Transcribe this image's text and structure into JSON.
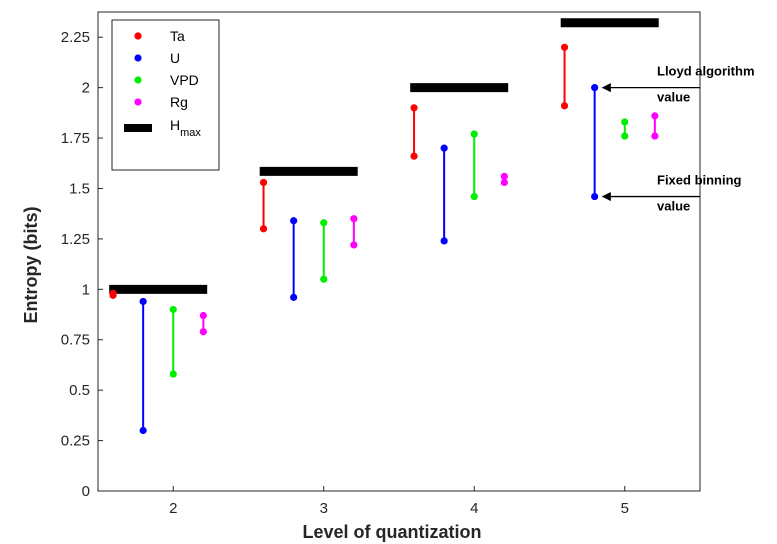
{
  "chart_data": {
    "type": "scatter",
    "title": "",
    "xlabel": "Level of quantization",
    "ylabel": "Entropy (bits)",
    "xlim": [
      1.5,
      5.5
    ],
    "ylim": [
      0,
      2.375
    ],
    "x_ticks": [
      2,
      3,
      4,
      5
    ],
    "x_tick_labels": [
      "2",
      "3",
      "4",
      "5"
    ],
    "y_ticks": [
      0,
      0.25,
      0.5,
      0.75,
      1,
      1.25,
      1.5,
      1.75,
      2,
      2.25
    ],
    "y_tick_labels": [
      "0",
      "0.25",
      "0.5",
      "0.75",
      "1",
      "1.25",
      "1.5",
      "1.75",
      "2",
      "2.25"
    ],
    "grid": true,
    "legend_position": "top-left",
    "series": [
      {
        "name": "Ta",
        "color": "#ff0000",
        "offset": -0.2,
        "points": [
          {
            "level": 2,
            "lloyd": 0.98,
            "fixed": 0.97
          },
          {
            "level": 3,
            "lloyd": 1.53,
            "fixed": 1.3
          },
          {
            "level": 4,
            "lloyd": 1.9,
            "fixed": 1.66
          },
          {
            "level": 5,
            "lloyd": 2.2,
            "fixed": 1.91
          }
        ]
      },
      {
        "name": "U",
        "color": "#0000ff",
        "offset": 0,
        "points": [
          {
            "level": 2,
            "lloyd": 0.94,
            "fixed": 0.3
          },
          {
            "level": 3,
            "lloyd": 1.34,
            "fixed": 0.96
          },
          {
            "level": 4,
            "lloyd": 1.7,
            "fixed": 1.24
          },
          {
            "level": 5,
            "lloyd": 2.0,
            "fixed": 1.46
          }
        ]
      },
      {
        "name": "VPD",
        "color": "#00ee00",
        "offset": 0.2,
        "points": [
          {
            "level": 2,
            "lloyd": 0.9,
            "fixed": 0.58
          },
          {
            "level": 3,
            "lloyd": 1.33,
            "fixed": 1.05
          },
          {
            "level": 4,
            "lloyd": 1.77,
            "fixed": 1.46
          },
          {
            "level": 5,
            "lloyd": 1.83,
            "fixed": 1.76
          }
        ]
      },
      {
        "name": "Rg",
        "color": "#ff00ff",
        "offset": 0.4,
        "points": [
          {
            "level": 2,
            "lloyd": 0.87,
            "fixed": 0.79
          },
          {
            "level": 3,
            "lloyd": 1.35,
            "fixed": 1.22
          },
          {
            "level": 4,
            "lloyd": 1.56,
            "fixed": 1.53
          },
          {
            "level": 5,
            "lloyd": 1.86,
            "fixed": 1.76
          }
        ]
      }
    ],
    "hmax": {
      "name_main": "H",
      "name_sub": "max",
      "color": "#000000",
      "values": [
        {
          "level": 2,
          "value": 1.0
        },
        {
          "level": 3,
          "value": 1.585
        },
        {
          "level": 4,
          "value": 2.0
        },
        {
          "level": 5,
          "value": 2.322
        }
      ]
    },
    "annotations": [
      {
        "lines": [
          "Lloyd algorithm",
          "value"
        ],
        "level": 5,
        "series": "U",
        "point": "lloyd"
      },
      {
        "lines": [
          "Fixed binning",
          "value"
        ],
        "level": 5,
        "series": "U",
        "point": "fixed"
      }
    ]
  }
}
